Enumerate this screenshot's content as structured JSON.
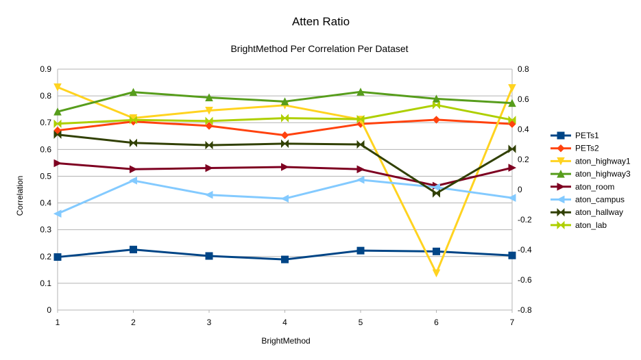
{
  "chart_data": {
    "type": "line",
    "title": "Atten Ratio",
    "subtitle": "BrightMethod Per Correlation Per Dataset",
    "xlabel": "BrightMethod",
    "ylabel": "Correlation",
    "x": [
      1,
      2,
      3,
      4,
      5,
      6,
      7
    ],
    "xlim": [
      1,
      7
    ],
    "ylim": [
      0,
      0.9
    ],
    "y2lim": [
      -0.8,
      0.8
    ],
    "y_ticks": [
      "0",
      "0.1",
      "0.2",
      "0.3",
      "0.4",
      "0.5",
      "0.6",
      "0.7",
      "0.8",
      "0.9"
    ],
    "y2_ticks": [
      "-0.8",
      "-0.6",
      "-0.4",
      "-0.2",
      "0",
      "0.2",
      "0.4",
      "0.6",
      "0.8"
    ],
    "x_ticks": [
      "1",
      "2",
      "3",
      "4",
      "5",
      "6",
      "7"
    ],
    "grid": "horizontal",
    "legend_position": "right",
    "series": [
      {
        "name": "PETs1",
        "axis": "left",
        "color": "#004586",
        "marker": "square",
        "values": [
          0.198,
          0.226,
          0.202,
          0.189,
          0.222,
          0.219,
          0.204
        ]
      },
      {
        "name": "PETs2",
        "axis": "left",
        "color": "#ff420e",
        "marker": "diamond",
        "values": [
          0.671,
          0.704,
          0.688,
          0.653,
          0.695,
          0.711,
          0.695
        ]
      },
      {
        "name": "aton_highway1",
        "axis": "right",
        "color": "#ffd320",
        "marker": "triangle-down",
        "values": [
          0.68,
          0.475,
          0.525,
          0.56,
          0.465,
          -0.555,
          0.675
        ]
      },
      {
        "name": "aton_highway3",
        "axis": "left",
        "color": "#579d1c",
        "marker": "triangle-up",
        "values": [
          0.741,
          0.814,
          0.794,
          0.779,
          0.815,
          0.789,
          0.773
        ]
      },
      {
        "name": "aton_room",
        "axis": "right",
        "color": "#7e0021",
        "marker": "triangle-right",
        "values": [
          0.175,
          0.135,
          0.143,
          0.15,
          0.135,
          0.025,
          0.145
        ]
      },
      {
        "name": "aton_campus",
        "axis": "right",
        "color": "#83caff",
        "marker": "triangle-left",
        "values": [
          -0.16,
          0.06,
          -0.035,
          -0.06,
          0.065,
          0.015,
          -0.055
        ]
      },
      {
        "name": "aton_hallway",
        "axis": "right",
        "color": "#314004",
        "marker": "bowtie",
        "values": [
          0.365,
          0.31,
          0.295,
          0.305,
          0.3,
          -0.025,
          0.27
        ]
      },
      {
        "name": "aton_lab",
        "axis": "left",
        "color": "#aecf00",
        "marker": "bowtie",
        "values": [
          0.696,
          0.71,
          0.706,
          0.717,
          0.713,
          0.766,
          0.71
        ]
      }
    ]
  }
}
